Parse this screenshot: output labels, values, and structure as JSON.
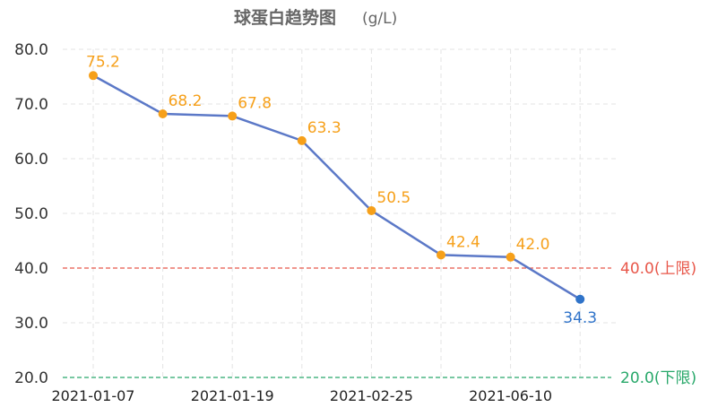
{
  "chart_data": {
    "type": "line",
    "title": "球蛋白趋势图",
    "unit": "(g/L)",
    "x": [
      "2021-01-07",
      "",
      "2021-01-19",
      "",
      "2021-02-25",
      "",
      "2021-06-10",
      ""
    ],
    "values": [
      75.2,
      68.2,
      67.8,
      63.3,
      50.5,
      42.4,
      42.0,
      34.3
    ],
    "value_labels": [
      "75.2",
      "68.2",
      "67.8",
      "63.3",
      "50.5",
      "42.4",
      "42.0",
      "34.3"
    ],
    "ylim": [
      20,
      80
    ],
    "yticks": [
      "20.0",
      "30.0",
      "40.0",
      "50.0",
      "60.0",
      "70.0",
      "80.0"
    ],
    "grid": true,
    "line_color": "#5b78c7",
    "point_color": "#f6a01a",
    "last_point_color": "#2f73c9",
    "reference_lines": [
      {
        "value": 40.0,
        "label": "40.0(上限)",
        "color": "#e8574a"
      },
      {
        "value": 20.0,
        "label": "20.0(下限)",
        "color": "#28a86a"
      }
    ]
  }
}
